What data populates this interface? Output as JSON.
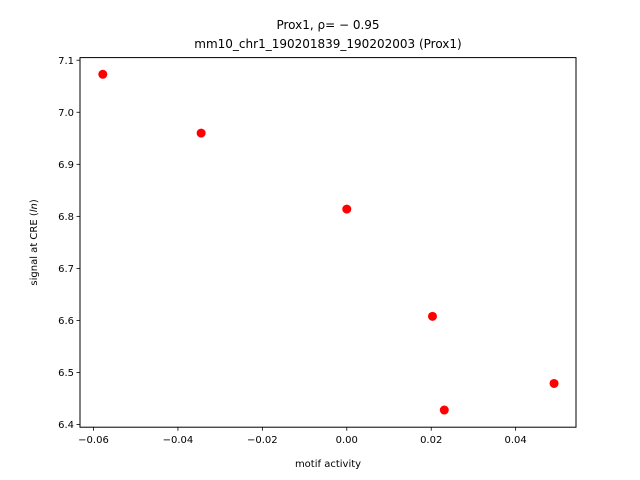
{
  "chart_data": {
    "type": "scatter",
    "title_line1": "Prox1, ρ= − 0.95",
    "title_line2": "mm10_chr1_190201839_190202003 (Prox1)",
    "xlabel": "motif activity",
    "ylabel": "signal at CRE (ln)",
    "xlim": [
      -0.0632,
      0.0543
    ],
    "ylim": [
      6.395,
      7.105
    ],
    "x_ticks": [
      -0.06,
      -0.04,
      -0.02,
      0.0,
      0.02,
      0.04
    ],
    "x_tick_labels": [
      "−0.06",
      "−0.04",
      "−0.02",
      "0.00",
      "0.02",
      "0.04"
    ],
    "y_ticks": [
      6.4,
      6.5,
      6.6,
      6.7,
      6.8,
      6.9,
      7.0,
      7.1
    ],
    "y_tick_labels": [
      "6.4",
      "6.5",
      "6.6",
      "6.7",
      "6.8",
      "6.9",
      "7.0",
      "7.1"
    ],
    "grid": false,
    "marker_color": "#ff0000",
    "points": [
      {
        "x": -0.0578,
        "y": 7.073
      },
      {
        "x": -0.0345,
        "y": 6.96
      },
      {
        "x": 0.0,
        "y": 6.814
      },
      {
        "x": 0.0203,
        "y": 6.608
      },
      {
        "x": 0.0231,
        "y": 6.428
      },
      {
        "x": 0.0491,
        "y": 6.479
      }
    ]
  }
}
